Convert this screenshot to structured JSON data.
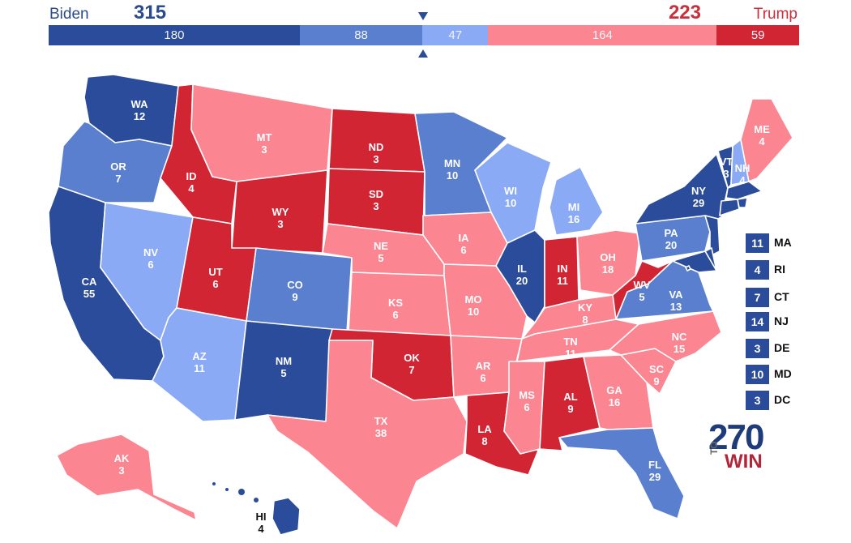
{
  "header": {
    "biden_label": "Biden",
    "trump_label": "Trump",
    "biden_total": "315",
    "trump_total": "223"
  },
  "bar": [
    {
      "label": "180",
      "value": 180,
      "color": "#2a4c9a"
    },
    {
      "label": "88",
      "value": 88,
      "color": "#5a7fcf"
    },
    {
      "label": "47",
      "value": 47,
      "color": "#8aaaf5"
    },
    {
      "label": "164",
      "value": 164,
      "color": "#fb8590"
    },
    {
      "label": "59",
      "value": 59,
      "color": "#d22534"
    }
  ],
  "colors": {
    "safe_d": "#2a4c9a",
    "likely_d": "#5a7fcf",
    "lean_d": "#8aaaf5",
    "lean_r": "#fb8590",
    "likely_r": "#fb8590",
    "safe_r": "#d22534"
  },
  "states": [
    {
      "abbr": "WA",
      "ev": "12",
      "rating": "safe_d"
    },
    {
      "abbr": "OR",
      "ev": "7",
      "rating": "likely_d"
    },
    {
      "abbr": "CA",
      "ev": "55",
      "rating": "safe_d"
    },
    {
      "abbr": "NV",
      "ev": "6",
      "rating": "lean_d"
    },
    {
      "abbr": "ID",
      "ev": "4",
      "rating": "safe_r"
    },
    {
      "abbr": "MT",
      "ev": "3",
      "rating": "lean_r"
    },
    {
      "abbr": "WY",
      "ev": "3",
      "rating": "safe_r"
    },
    {
      "abbr": "UT",
      "ev": "6",
      "rating": "safe_r"
    },
    {
      "abbr": "AZ",
      "ev": "11",
      "rating": "lean_d"
    },
    {
      "abbr": "CO",
      "ev": "9",
      "rating": "likely_d"
    },
    {
      "abbr": "NM",
      "ev": "5",
      "rating": "safe_d"
    },
    {
      "abbr": "ND",
      "ev": "3",
      "rating": "safe_r"
    },
    {
      "abbr": "SD",
      "ev": "3",
      "rating": "safe_r"
    },
    {
      "abbr": "NE",
      "ev": "5",
      "rating": "lean_r"
    },
    {
      "abbr": "KS",
      "ev": "6",
      "rating": "lean_r"
    },
    {
      "abbr": "OK",
      "ev": "7",
      "rating": "safe_r"
    },
    {
      "abbr": "TX",
      "ev": "38",
      "rating": "lean_r"
    },
    {
      "abbr": "MN",
      "ev": "10",
      "rating": "likely_d"
    },
    {
      "abbr": "IA",
      "ev": "6",
      "rating": "lean_r"
    },
    {
      "abbr": "MO",
      "ev": "10",
      "rating": "lean_r"
    },
    {
      "abbr": "AR",
      "ev": "6",
      "rating": "lean_r"
    },
    {
      "abbr": "LA",
      "ev": "8",
      "rating": "safe_r"
    },
    {
      "abbr": "WI",
      "ev": "10",
      "rating": "lean_d"
    },
    {
      "abbr": "IL",
      "ev": "20",
      "rating": "safe_d"
    },
    {
      "abbr": "MI",
      "ev": "16",
      "rating": "lean_d"
    },
    {
      "abbr": "IN",
      "ev": "11",
      "rating": "safe_r"
    },
    {
      "abbr": "OH",
      "ev": "18",
      "rating": "lean_r"
    },
    {
      "abbr": "KY",
      "ev": "8",
      "rating": "lean_r"
    },
    {
      "abbr": "TN",
      "ev": "11",
      "rating": "lean_r"
    },
    {
      "abbr": "MS",
      "ev": "6",
      "rating": "lean_r"
    },
    {
      "abbr": "AL",
      "ev": "9",
      "rating": "safe_r"
    },
    {
      "abbr": "GA",
      "ev": "16",
      "rating": "lean_r"
    },
    {
      "abbr": "FL",
      "ev": "29",
      "rating": "likely_d"
    },
    {
      "abbr": "SC",
      "ev": "9",
      "rating": "lean_r"
    },
    {
      "abbr": "NC",
      "ev": "15",
      "rating": "lean_r"
    },
    {
      "abbr": "VA",
      "ev": "13",
      "rating": "likely_d"
    },
    {
      "abbr": "WV",
      "ev": "5",
      "rating": "safe_r"
    },
    {
      "abbr": "PA",
      "ev": "20",
      "rating": "likely_d"
    },
    {
      "abbr": "NY",
      "ev": "29",
      "rating": "safe_d"
    },
    {
      "abbr": "VT",
      "ev": "3",
      "rating": "safe_d"
    },
    {
      "abbr": "NH",
      "ev": "4",
      "rating": "lean_d"
    },
    {
      "abbr": "ME",
      "ev": "4",
      "rating": "lean_r"
    },
    {
      "abbr": "AK",
      "ev": "3",
      "rating": "lean_r"
    },
    {
      "abbr": "HI",
      "ev": "4",
      "rating": "safe_d"
    },
    {
      "abbr": "MA",
      "ev": "11",
      "rating": "safe_d"
    },
    {
      "abbr": "RI",
      "ev": "4",
      "rating": "safe_d"
    },
    {
      "abbr": "CT",
      "ev": "7",
      "rating": "safe_d"
    },
    {
      "abbr": "NJ",
      "ev": "14",
      "rating": "safe_d"
    },
    {
      "abbr": "DE",
      "ev": "3",
      "rating": "safe_d"
    },
    {
      "abbr": "MD",
      "ev": "10",
      "rating": "safe_d"
    },
    {
      "abbr": "DC",
      "ev": "3",
      "rating": "safe_d"
    }
  ],
  "legend": [
    {
      "abbr": "MA",
      "ev": "11"
    },
    {
      "abbr": "RI",
      "ev": "4"
    },
    {
      "abbr": "CT",
      "ev": "7"
    },
    {
      "abbr": "NJ",
      "ev": "14"
    },
    {
      "abbr": "DE",
      "ev": "3"
    },
    {
      "abbr": "MD",
      "ev": "10"
    },
    {
      "abbr": "DC",
      "ev": "3"
    }
  ],
  "logo": {
    "number": "270",
    "to": "TO",
    "win": "WIN"
  }
}
